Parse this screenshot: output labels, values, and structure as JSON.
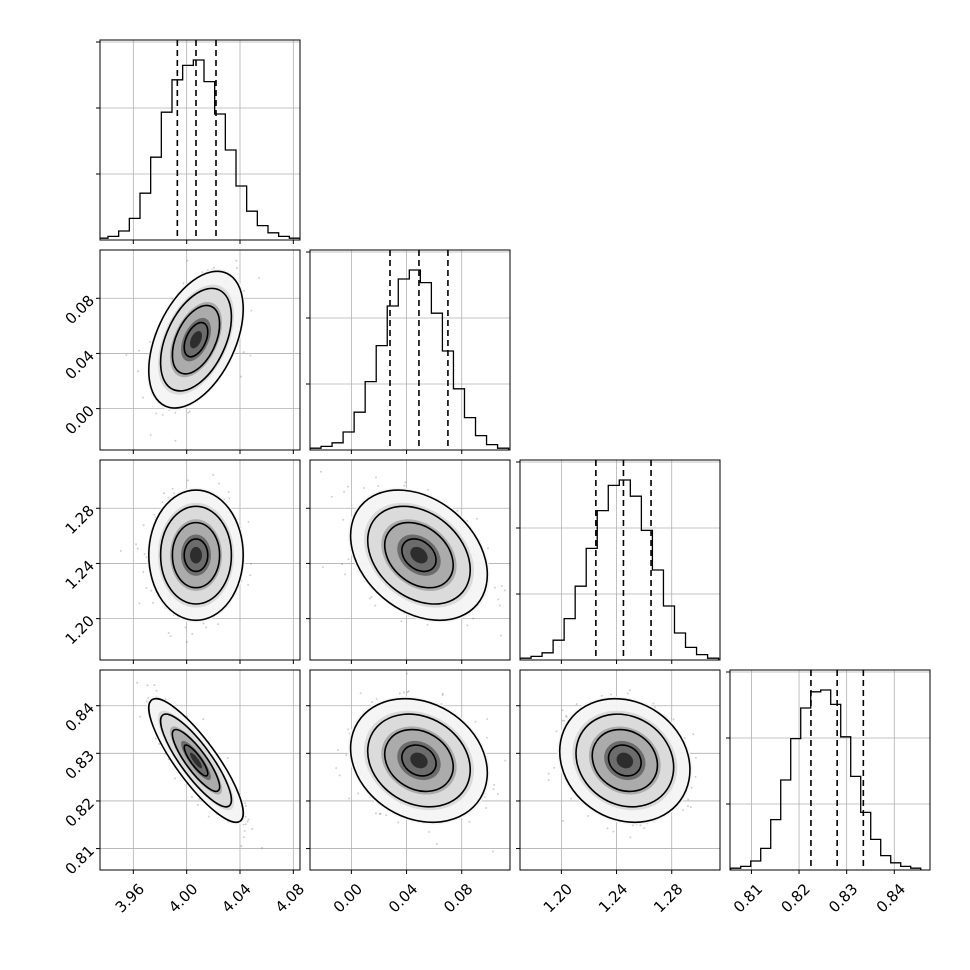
{
  "chart_data": {
    "type": "corner",
    "grid": true,
    "n_params": 4,
    "parameters": [
      {
        "index": 0,
        "range": [
          3.935,
          4.085
        ],
        "ticks": [
          3.96,
          4.0,
          4.04,
          4.08
        ],
        "tick_labels": [
          "3.96",
          "4.00",
          "4.04",
          "4.08"
        ],
        "quantiles": [
          3.993,
          4.007,
          4.022
        ],
        "hist_x": [
          3.937,
          3.945,
          3.953,
          3.961,
          3.969,
          3.977,
          3.985,
          3.993,
          4.001,
          4.009,
          4.017,
          4.025,
          4.033,
          4.041,
          4.049,
          4.057,
          4.065,
          4.073,
          4.081
        ],
        "hist_density": [
          0.01,
          0.02,
          0.05,
          0.12,
          0.26,
          0.46,
          0.71,
          0.89,
          0.97,
          1.0,
          0.88,
          0.7,
          0.5,
          0.3,
          0.16,
          0.08,
          0.04,
          0.02,
          0.01
        ]
      },
      {
        "index": 1,
        "range": [
          -0.03,
          0.115
        ],
        "ticks": [
          0.0,
          0.04,
          0.08
        ],
        "tick_labels": [
          "0.00",
          "0.04",
          "0.08"
        ],
        "quantiles": [
          0.028,
          0.049,
          0.07
        ],
        "hist_x": [
          -0.026,
          -0.018,
          -0.01,
          -0.002,
          0.006,
          0.014,
          0.022,
          0.03,
          0.038,
          0.046,
          0.054,
          0.062,
          0.07,
          0.078,
          0.086,
          0.094,
          0.102,
          0.11
        ],
        "hist_density": [
          0.01,
          0.02,
          0.04,
          0.1,
          0.21,
          0.38,
          0.58,
          0.8,
          0.95,
          1.0,
          0.93,
          0.76,
          0.55,
          0.34,
          0.18,
          0.08,
          0.03,
          0.01
        ]
      },
      {
        "index": 2,
        "range": [
          1.17,
          1.315
        ],
        "ticks": [
          1.2,
          1.24,
          1.28
        ],
        "tick_labels": [
          "1.20",
          "1.24",
          "1.28"
        ],
        "quantiles": [
          1.225,
          1.245,
          1.265
        ],
        "hist_x": [
          1.174,
          1.182,
          1.19,
          1.198,
          1.206,
          1.214,
          1.222,
          1.23,
          1.238,
          1.246,
          1.254,
          1.262,
          1.27,
          1.278,
          1.286,
          1.294,
          1.302,
          1.31
        ],
        "hist_density": [
          0.01,
          0.02,
          0.04,
          0.11,
          0.23,
          0.41,
          0.62,
          0.83,
          0.97,
          1.0,
          0.91,
          0.72,
          0.5,
          0.3,
          0.15,
          0.07,
          0.03,
          0.01
        ]
      },
      {
        "index": 3,
        "range": [
          0.8055,
          0.8475
        ],
        "ticks": [
          0.81,
          0.82,
          0.83,
          0.84
        ],
        "tick_labels": [
          "0.81",
          "0.82",
          "0.83",
          "0.84"
        ],
        "quantiles": [
          0.8225,
          0.828,
          0.8335
        ],
        "hist_x": [
          0.8067,
          0.8088,
          0.8109,
          0.813,
          0.8151,
          0.8172,
          0.8193,
          0.8214,
          0.8235,
          0.8256,
          0.8277,
          0.8298,
          0.8319,
          0.834,
          0.8361,
          0.8382,
          0.8403,
          0.8424,
          0.8445
        ],
        "hist_density": [
          0.01,
          0.02,
          0.05,
          0.12,
          0.28,
          0.5,
          0.73,
          0.9,
          0.99,
          1.0,
          0.92,
          0.74,
          0.52,
          0.32,
          0.17,
          0.08,
          0.04,
          0.02,
          0.01
        ]
      }
    ],
    "joint": [
      {
        "row": 1,
        "col": 0,
        "mean": [
          4.007,
          0.05
        ],
        "sd": [
          0.015,
          0.021
        ],
        "corr": 0.45
      },
      {
        "row": 2,
        "col": 0,
        "mean": [
          4.007,
          1.246
        ],
        "sd": [
          0.015,
          0.02
        ],
        "corr": 0.0
      },
      {
        "row": 2,
        "col": 1,
        "mean": [
          0.049,
          1.246
        ],
        "sd": [
          0.021,
          0.02
        ],
        "corr": -0.3
      },
      {
        "row": 3,
        "col": 0,
        "mean": [
          4.007,
          0.8285
        ],
        "sd": [
          0.015,
          0.0055
        ],
        "corr": -0.85
      },
      {
        "row": 3,
        "col": 1,
        "mean": [
          0.049,
          0.8285
        ],
        "sd": [
          0.021,
          0.0055
        ],
        "corr": -0.2
      },
      {
        "row": 3,
        "col": 2,
        "mean": [
          1.246,
          0.8285
        ],
        "sd": [
          0.02,
          0.0055
        ],
        "corr": -0.15
      }
    ],
    "contour_levels_sigma": [
      0.5,
      1.0,
      1.5,
      2.0
    ],
    "colors": {
      "line": "#000000",
      "grid": "#b0b0b0",
      "points": "#555555"
    }
  }
}
